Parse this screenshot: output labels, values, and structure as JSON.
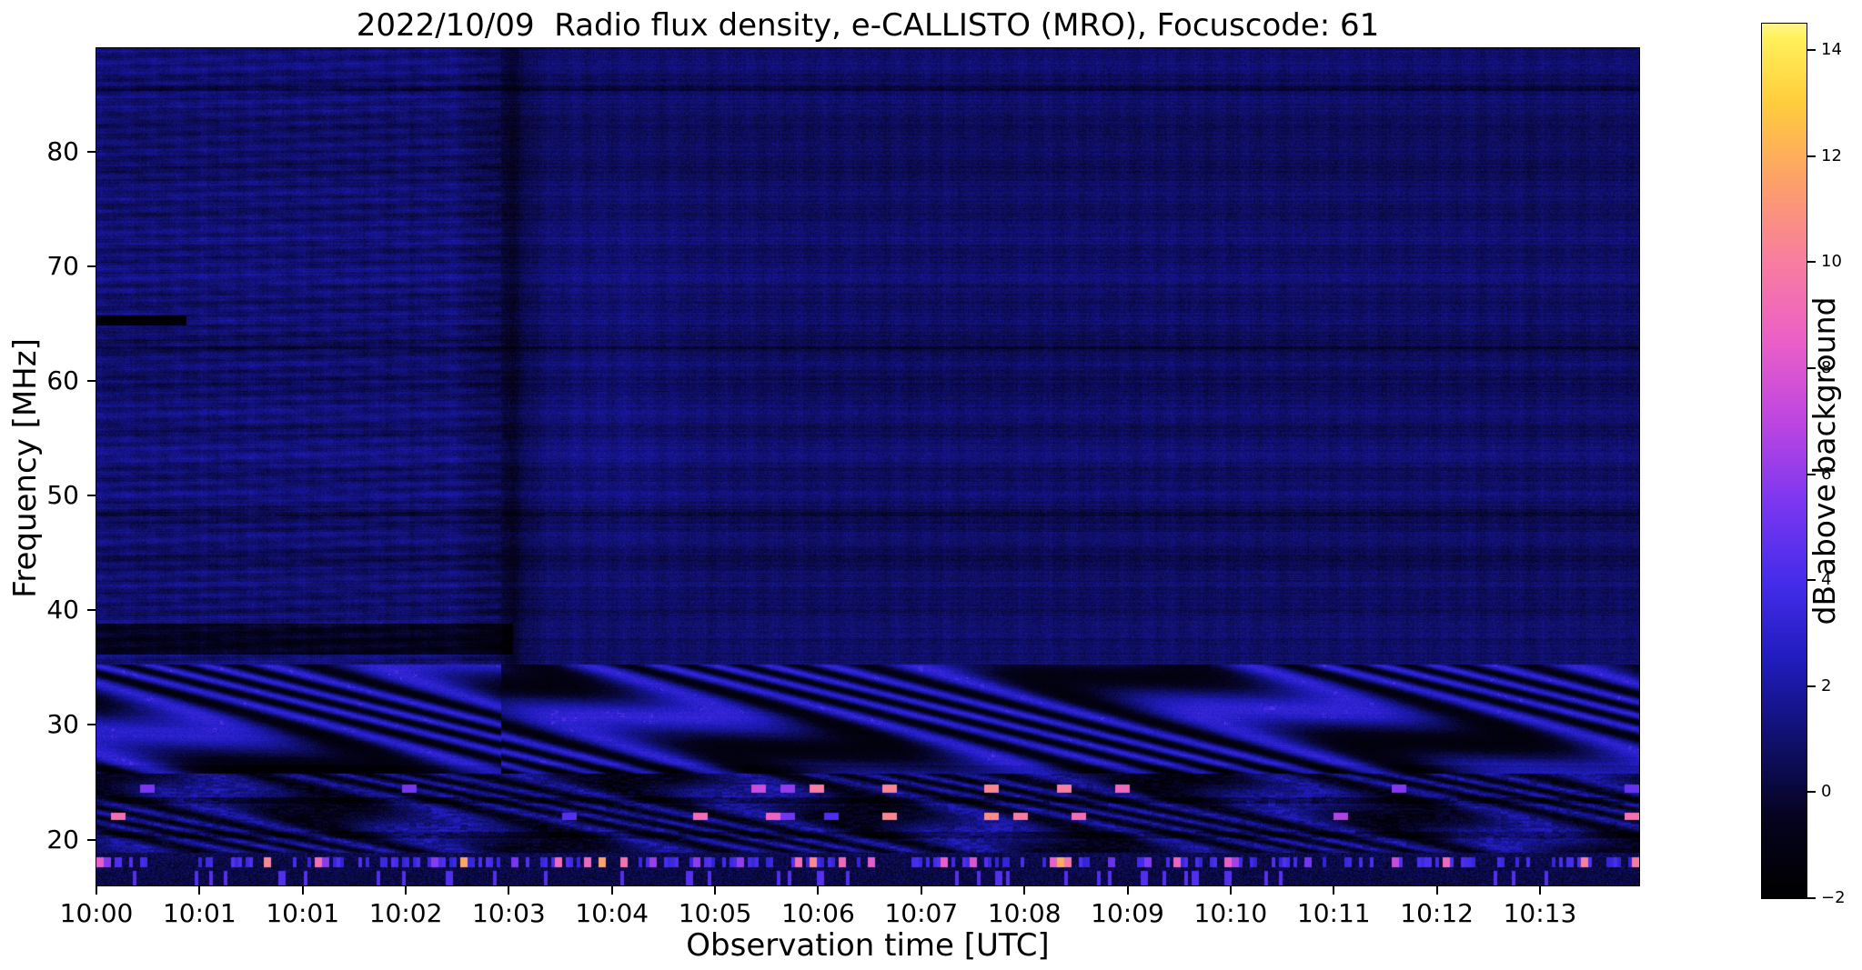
{
  "chart_data": {
    "type": "heatmap",
    "title": "2022/10/09  Radio flux density, e-CALLISTO (MRO), Focuscode: 61",
    "xlabel": "Observation time [UTC]",
    "ylabel": "Frequency [MHz]",
    "x_ticks": [
      "10:00",
      "10:01",
      "10:01",
      "10:02",
      "10:03",
      "10:04",
      "10:05",
      "10:06",
      "10:07",
      "10:08",
      "10:09",
      "10:10",
      "10:11",
      "10:12",
      "10:13"
    ],
    "y_ticks": [
      80,
      70,
      60,
      50,
      40,
      30,
      20
    ],
    "freq_range_mhz": [
      16,
      89
    ],
    "time_range_utc": [
      "10:00",
      "10:14"
    ],
    "grid": false,
    "colorbar": {
      "label": "dB above background",
      "tick_values": [
        14,
        12,
        10,
        8,
        6,
        4,
        2,
        0,
        -2
      ],
      "tick_labels": [
        "14",
        "12",
        "10",
        "8",
        "6",
        "4",
        "2",
        "0",
        "−2"
      ],
      "vmin": -2,
      "vmax": 14.5,
      "position": "right"
    },
    "colormap": {
      "name": "gnuplot2-like (black-blue-magenta-pink-orange-yellow-white)",
      "stops": [
        {
          "v": -2.0,
          "rgb": [
            0,
            0,
            0
          ]
        },
        {
          "v": -0.5,
          "rgb": [
            5,
            3,
            30
          ]
        },
        {
          "v": 1.0,
          "rgb": [
            16,
            16,
            110
          ]
        },
        {
          "v": 2.5,
          "rgb": [
            32,
            28,
            190
          ]
        },
        {
          "v": 4.0,
          "rgb": [
            70,
            45,
            235
          ]
        },
        {
          "v": 5.5,
          "rgb": [
            125,
            55,
            240
          ]
        },
        {
          "v": 7.0,
          "rgb": [
            190,
            70,
            225
          ]
        },
        {
          "v": 8.5,
          "rgb": [
            235,
            95,
            200
          ]
        },
        {
          "v": 10.0,
          "rgb": [
            248,
            125,
            160
          ]
        },
        {
          "v": 11.5,
          "rgb": [
            252,
            160,
            105
          ]
        },
        {
          "v": 13.0,
          "rgb": [
            255,
            205,
            60
          ]
        },
        {
          "v": 14.2,
          "rgb": [
            255,
            240,
            90
          ]
        },
        {
          "v": 15.0,
          "rgb": [
            255,
            255,
            235
          ]
        }
      ]
    },
    "features": {
      "description": [
        "quiet dark-blue noise background across the full 16-89 MHz band (~0-2 dB)",
        "fine horizontal banding/striping over the whole spectrogram",
        "brighter, finely striped region from 10:00 until ~10:03.6 above 35 MHz",
        "dark vertical instrumental column near 10:03.6",
        "dark horizontal band near 37-38.5 MHz before 10:03.6",
        "short black streak near 65 MHz right at 10:00",
        "strong wavy ionospheric interference fringes between ~19 and ~35 MHz",
        "bright pink/magenta RFI dashes near 24.5 MHz and 22 MHz, denser after 10:04",
        "speckled RFI band with bright pink/orange dots near 18 MHz"
      ],
      "fringe_top_mhz": 35.3,
      "fringe_mid_mhz": 25.8,
      "speckle_top_mhz": 18.9,
      "rfi_rows_mhz": [
        24.5,
        22.1,
        18.1
      ],
      "dark_band_mhz": [
        36.2,
        38.9
      ],
      "dark_band_end_time_frac": 0.27,
      "dark_column_time_frac": 0.268,
      "black_streak_mhz": 65.3,
      "black_streak_end_frac": 0.058
    }
  }
}
